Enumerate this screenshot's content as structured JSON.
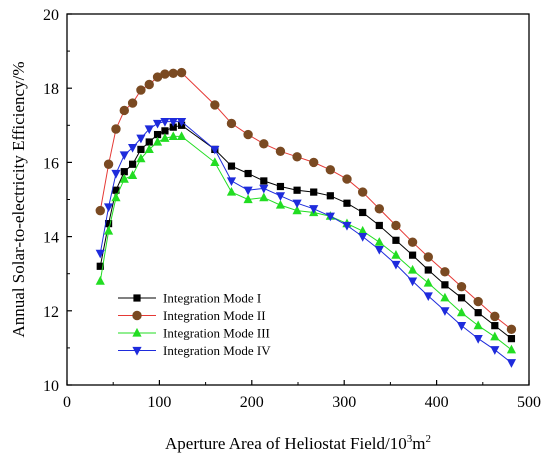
{
  "chart_data": {
    "type": "line",
    "title": "",
    "xlabel_main": "Aperture Area of Heliostat Field/10",
    "xlabel_sup": "3",
    "xlabel_tail": "m",
    "xlabel_sup2": "2",
    "ylabel": "Annual Solar-to-electricity Efficiency/%",
    "xlim": [
      0,
      500
    ],
    "ylim": [
      10,
      20
    ],
    "xticks": [
      0,
      100,
      200,
      300,
      400,
      500
    ],
    "yticks": [
      10,
      12,
      14,
      16,
      18,
      20
    ],
    "grid": false,
    "legend_position": "lower-left",
    "x": [
      36,
      45,
      53,
      62,
      71,
      80,
      89,
      98,
      106,
      115,
      124,
      160,
      178,
      196,
      213,
      231,
      249,
      267,
      285,
      303,
      320,
      338,
      356,
      374,
      391,
      409,
      427,
      445,
      463,
      481
    ],
    "series": [
      {
        "name": "Integration Mode I",
        "color": "#000000",
        "marker": "square",
        "values": [
          13.2,
          14.35,
          15.25,
          15.75,
          15.95,
          16.35,
          16.55,
          16.75,
          16.85,
          16.95,
          17.0,
          16.35,
          15.9,
          15.7,
          15.5,
          15.35,
          15.25,
          15.2,
          15.1,
          14.9,
          14.65,
          14.3,
          13.9,
          13.5,
          13.1,
          12.7,
          12.35,
          11.95,
          11.6,
          11.25
        ]
      },
      {
        "name": "Integration Mode II",
        "color": "#e53935",
        "marker": "circle",
        "values": [
          14.7,
          15.95,
          16.9,
          17.4,
          17.6,
          17.95,
          18.1,
          18.3,
          18.38,
          18.4,
          18.42,
          17.55,
          17.05,
          16.75,
          16.5,
          16.3,
          16.15,
          16.0,
          15.8,
          15.55,
          15.2,
          14.75,
          14.3,
          13.85,
          13.45,
          13.05,
          12.65,
          12.25,
          11.85,
          11.5
        ]
      },
      {
        "name": "Integration Mode III",
        "color": "#22dd22",
        "marker": "triangle-up",
        "values": [
          12.8,
          14.15,
          15.05,
          15.55,
          15.65,
          16.1,
          16.35,
          16.55,
          16.65,
          16.7,
          16.7,
          16.0,
          15.2,
          15.0,
          15.05,
          14.85,
          14.7,
          14.65,
          14.55,
          14.35,
          14.15,
          13.85,
          13.5,
          13.1,
          12.75,
          12.35,
          11.95,
          11.6,
          11.3,
          10.95
        ]
      },
      {
        "name": "Integration Mode IV",
        "color": "#1e2bdc",
        "marker": "triangle-down",
        "values": [
          13.55,
          14.8,
          15.7,
          16.2,
          16.4,
          16.65,
          16.9,
          17.05,
          17.1,
          17.1,
          17.1,
          16.35,
          15.5,
          15.25,
          15.3,
          15.1,
          14.9,
          14.75,
          14.55,
          14.3,
          14.0,
          13.65,
          13.25,
          12.8,
          12.4,
          12.0,
          11.6,
          11.25,
          10.95,
          10.6
        ]
      }
    ]
  }
}
